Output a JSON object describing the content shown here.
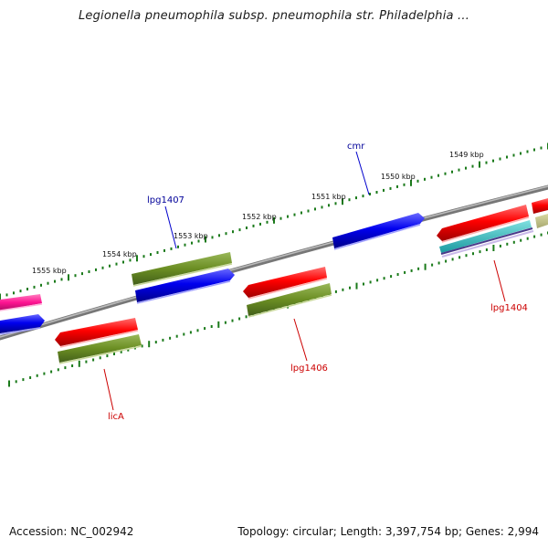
{
  "title": "Legionella pneumophila subsp. pneumophila str. Philadelphia ...",
  "footer": {
    "accession": "Accession: NC_002942",
    "stats": "Topology: circular; Length: 3,397,754 bp; Genes: 2,994"
  },
  "scale": {
    "ticks": [
      "1549 kbp",
      "1550 kbp",
      "1551 kbp",
      "1552 kbp",
      "1553 kbp",
      "1554 kbp",
      "1555 kbp"
    ]
  },
  "genes": [
    {
      "name": "cmr",
      "strand": "forward",
      "color": "#0000ee"
    },
    {
      "name": "lpg1407",
      "strand": "forward",
      "color": "#0000ee"
    },
    {
      "name": "lpg1406",
      "strand": "reverse",
      "color": "#dd0000"
    },
    {
      "name": "lpg1404",
      "strand": "reverse",
      "color": "#dd0000"
    },
    {
      "name": "licA",
      "strand": "reverse",
      "color": "#dd0000"
    }
  ],
  "colors": {
    "backbone": "#808080",
    "forward_cds": "#0000ee",
    "reverse_cds": "#ff0000",
    "olive_feature": "#6b8e23",
    "magenta_feature": "#ff1493",
    "cyan_feature": "#20b2aa",
    "tick": "#1a7a1a",
    "forward_label": "#000099",
    "reverse_label": "#cc0000"
  }
}
